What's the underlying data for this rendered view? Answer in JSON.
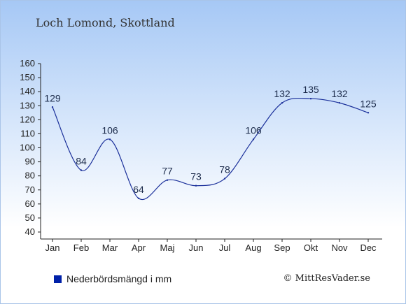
{
  "title": "Loch Lomond, Skottland",
  "legend_label": "Nederbördsmängd i mm",
  "credit": "© MittResVader.se",
  "colors": {
    "line": "#1a2f9a",
    "swatch": "#0020a8"
  },
  "chart_data": {
    "type": "line",
    "title": "Loch Lomond, Skottland",
    "categories": [
      "Jan",
      "Feb",
      "Mar",
      "Apr",
      "Maj",
      "Jun",
      "Jul",
      "Aug",
      "Sep",
      "Okt",
      "Nov",
      "Dec"
    ],
    "series": [
      {
        "name": "Nederbördsmängd i mm",
        "values": [
          129,
          84,
          106,
          64,
          77,
          73,
          78,
          106,
          132,
          135,
          132,
          125
        ]
      }
    ],
    "ylim": [
      40,
      160
    ],
    "yticks": [
      40,
      50,
      60,
      70,
      80,
      90,
      100,
      110,
      120,
      130,
      140,
      150,
      160
    ],
    "grid": false,
    "legend": "bottom-left"
  }
}
